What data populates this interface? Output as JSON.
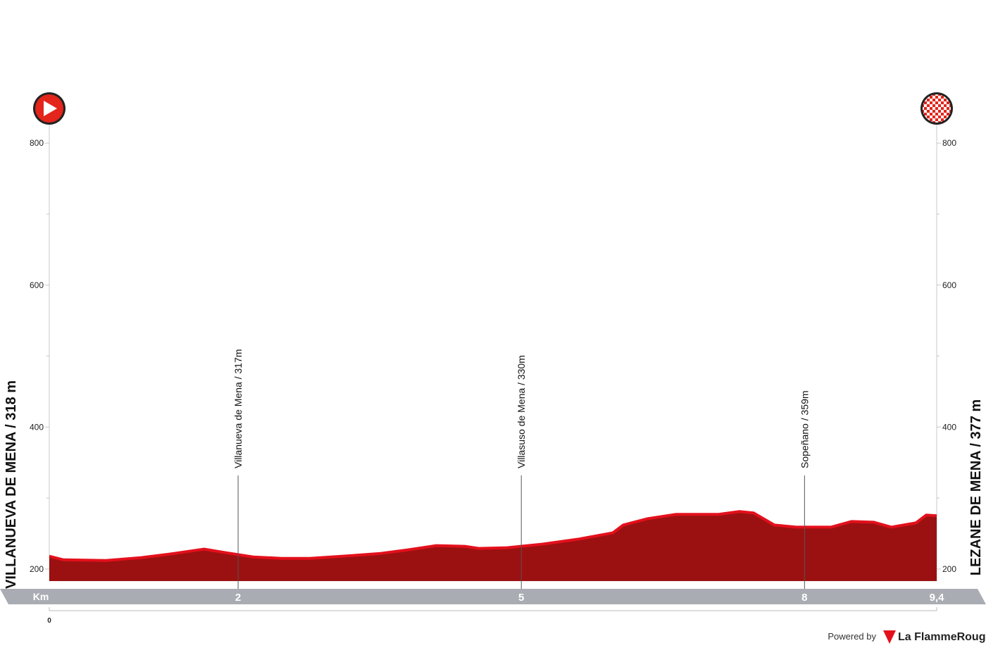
{
  "chart_data": {
    "type": "area",
    "start": "VILLANUEVA DE MENA / 318 m",
    "finish": "LEZANE DE MENA / 377 m",
    "x_label": "Km",
    "x": [
      0,
      0.15,
      0.6,
      0.97,
      1.27,
      1.64,
      1.87,
      2.16,
      2.46,
      2.76,
      3.21,
      3.51,
      3.8,
      4.1,
      4.4,
      4.55,
      4.85,
      5.22,
      5.6,
      5.97,
      6.08,
      6.34,
      6.64,
      7.09,
      7.31,
      7.46,
      7.68,
      7.91,
      8.28,
      8.5,
      8.73,
      8.92,
      9.18,
      9.29,
      9.4
    ],
    "values": [
      218,
      213,
      212,
      216,
      221,
      228,
      223,
      217,
      215,
      215,
      219,
      222,
      227,
      233,
      232,
      229,
      230,
      235,
      242,
      251,
      262,
      271,
      277,
      277,
      281,
      279,
      262,
      259,
      259,
      267,
      266,
      259,
      265,
      276,
      275
    ],
    "color": "#9b1111",
    "edge_color": "#e3101c",
    "xlim": [
      0,
      9.4
    ],
    "xticks": [
      0,
      2,
      5,
      8,
      {
        "value": 9.4,
        "label": "9,4"
      }
    ],
    "ylim": [
      183,
      828
    ],
    "yticks": [
      200,
      400,
      600,
      800
    ],
    "yminor": [
      300,
      500,
      700
    ],
    "waypoints": [
      {
        "km": 2,
        "label": "Villanueva de Mena / 317m"
      },
      {
        "km": 5,
        "label": "Villasuso de Mena / 330m"
      },
      {
        "km": 8,
        "label": "Sopeñano / 359m"
      }
    ]
  },
  "footer": {
    "powered": "Powered by",
    "brand_a": "La Flamme",
    "brand_b": "Rouge"
  }
}
